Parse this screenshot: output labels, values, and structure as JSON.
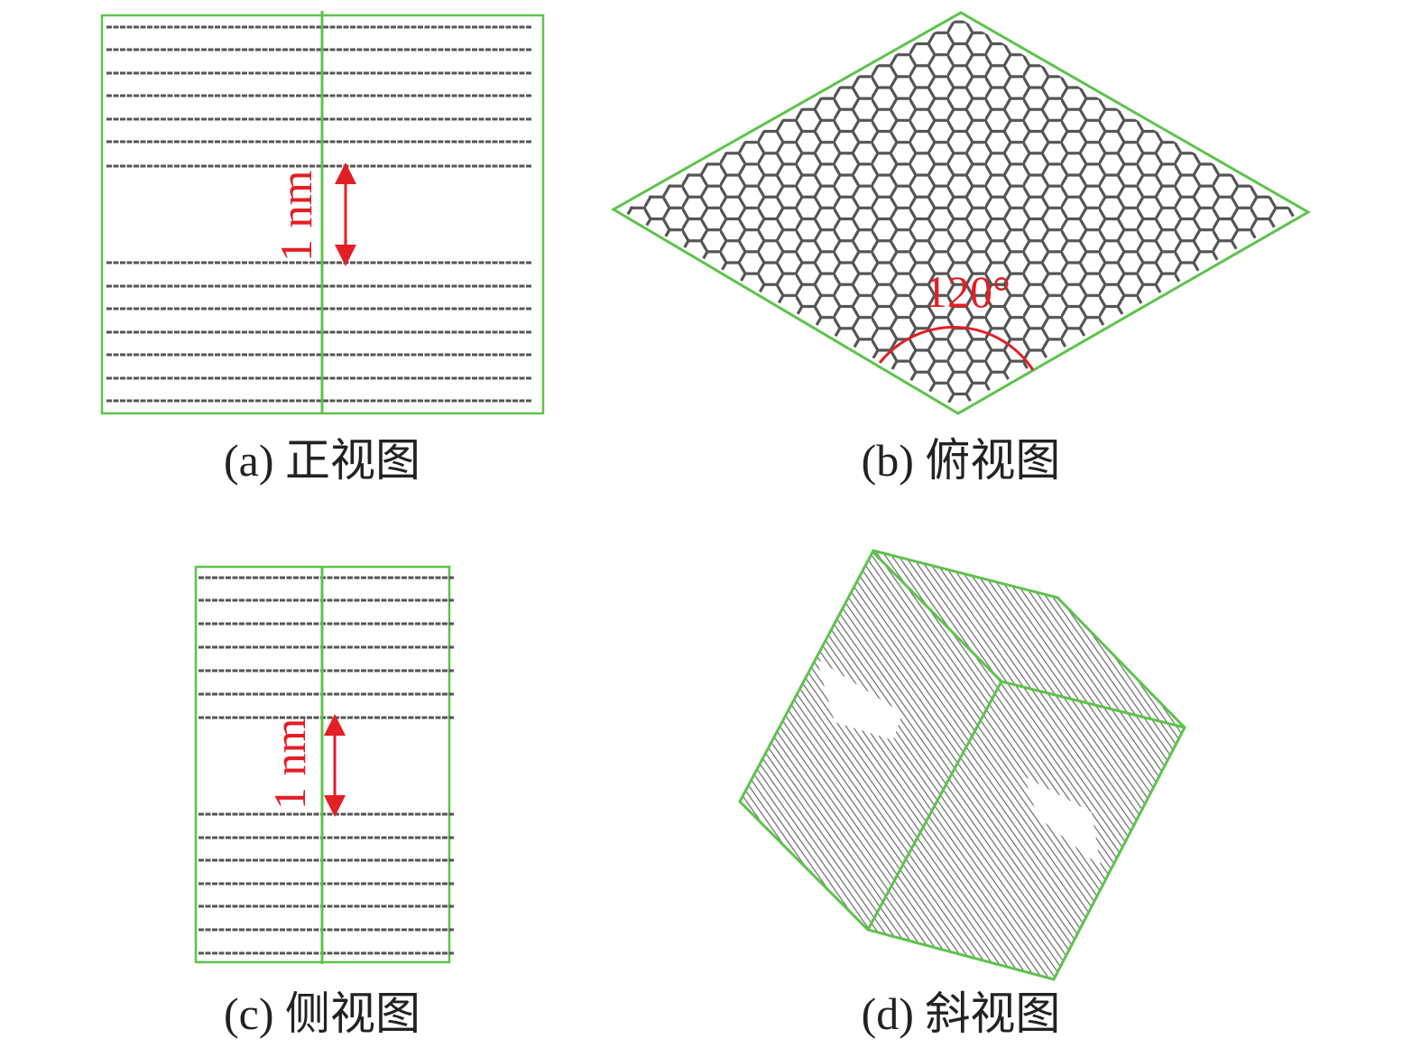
{
  "panels": [
    {
      "id": "a",
      "caption": "(a) 正视图",
      "spacing_label": "1 nm"
    },
    {
      "id": "b",
      "caption": "(b) 俯视图",
      "angle_label": "120°"
    },
    {
      "id": "c",
      "caption": "(c) 侧视图",
      "spacing_label": "1 nm"
    },
    {
      "id": "d",
      "caption": "(d) 斜视图"
    }
  ],
  "colors": {
    "cell_box": "#5cc44a",
    "atoms": "#555555",
    "annotation": "#e31e24"
  }
}
